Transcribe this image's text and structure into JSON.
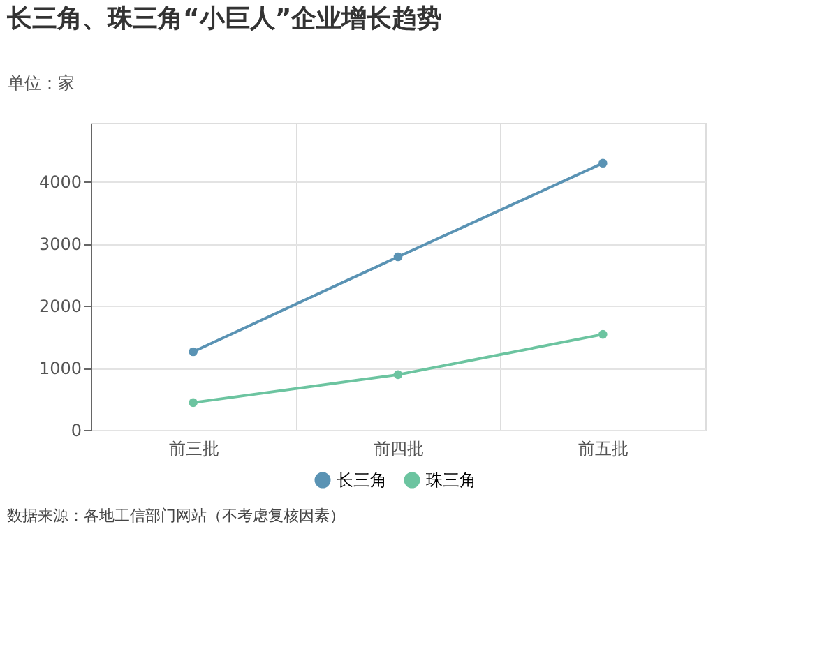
{
  "chart_data": {
    "type": "line",
    "title": "长三角、珠三角“小巨人”企业增长趋势",
    "ylabel": "单位：家",
    "categories": [
      "前三批",
      "前四批",
      "前五批"
    ],
    "series": [
      {
        "name": "长三角",
        "color": "#5a93b4",
        "values": [
          1260,
          2790,
          4300
        ]
      },
      {
        "name": "珠三角",
        "color": "#6cc4a0",
        "values": [
          440,
          890,
          1540
        ]
      }
    ],
    "ylim": [
      0,
      4950
    ],
    "yticks": [
      0,
      1000,
      2000,
      3000,
      4000
    ],
    "grid": true,
    "legend": "bottom",
    "marker": "circle",
    "line_style": "solid",
    "annotations": [
      "数据来源：各地工信部门网站（不考虑复核因素）"
    ]
  }
}
